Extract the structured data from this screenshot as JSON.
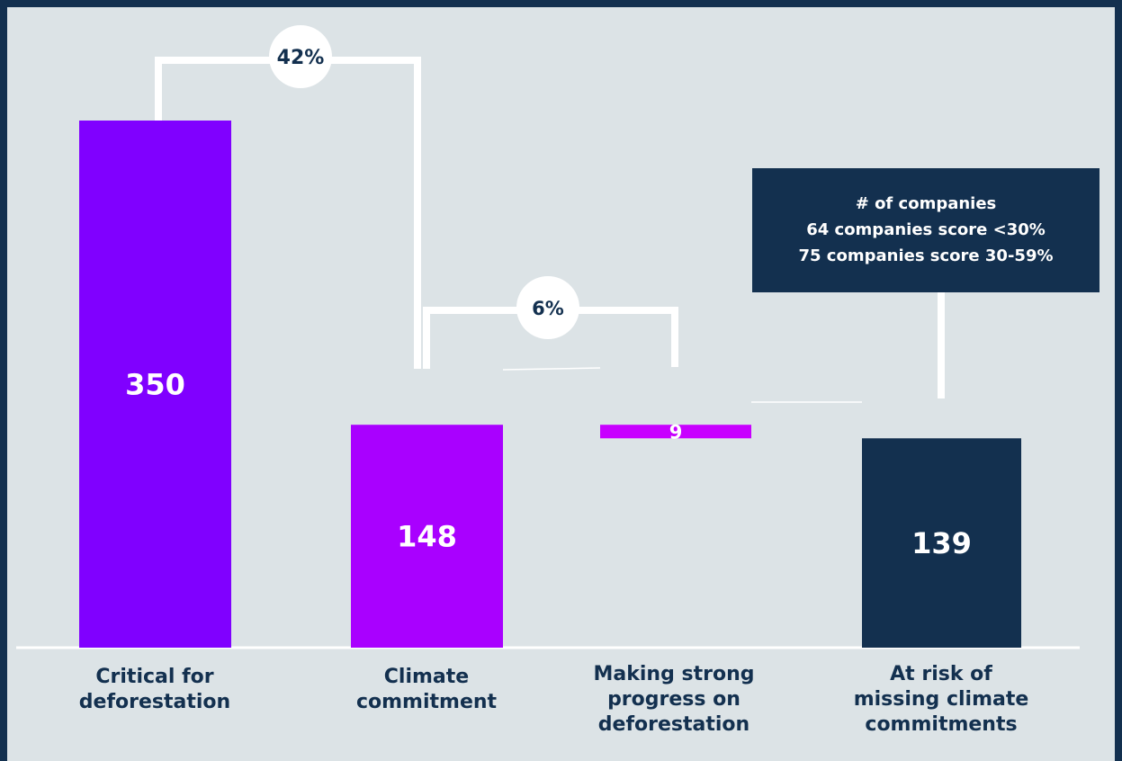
{
  "chart_data": {
    "type": "bar",
    "categories": [
      "Critical for\ndeforestation",
      "Climate\ncommitment",
      "Making strong\nprogress on\ndeforestation",
      "At risk of\nmissing climate\ncommitments"
    ],
    "values": [
      350,
      148,
      9,
      139
    ],
    "value_labels": [
      "350",
      "148",
      "9",
      "139"
    ],
    "ylim": [
      0,
      350
    ],
    "grid": false,
    "legend": "none",
    "colors": {
      "bar1": "#8000ff",
      "bar2": "#a900ff",
      "bar3": "#c800ff",
      "bar4": "#13304f",
      "background": "#dce3e6",
      "frame": "#13304f",
      "connector": "#ffffff"
    },
    "annotations": {
      "pct_1_to_2": "42%",
      "pct_2_to_3": "6%",
      "note_title": "# of companies",
      "note_line_1": "64 companies score <30%",
      "note_line_2": "75 companies score 30-59%"
    }
  }
}
